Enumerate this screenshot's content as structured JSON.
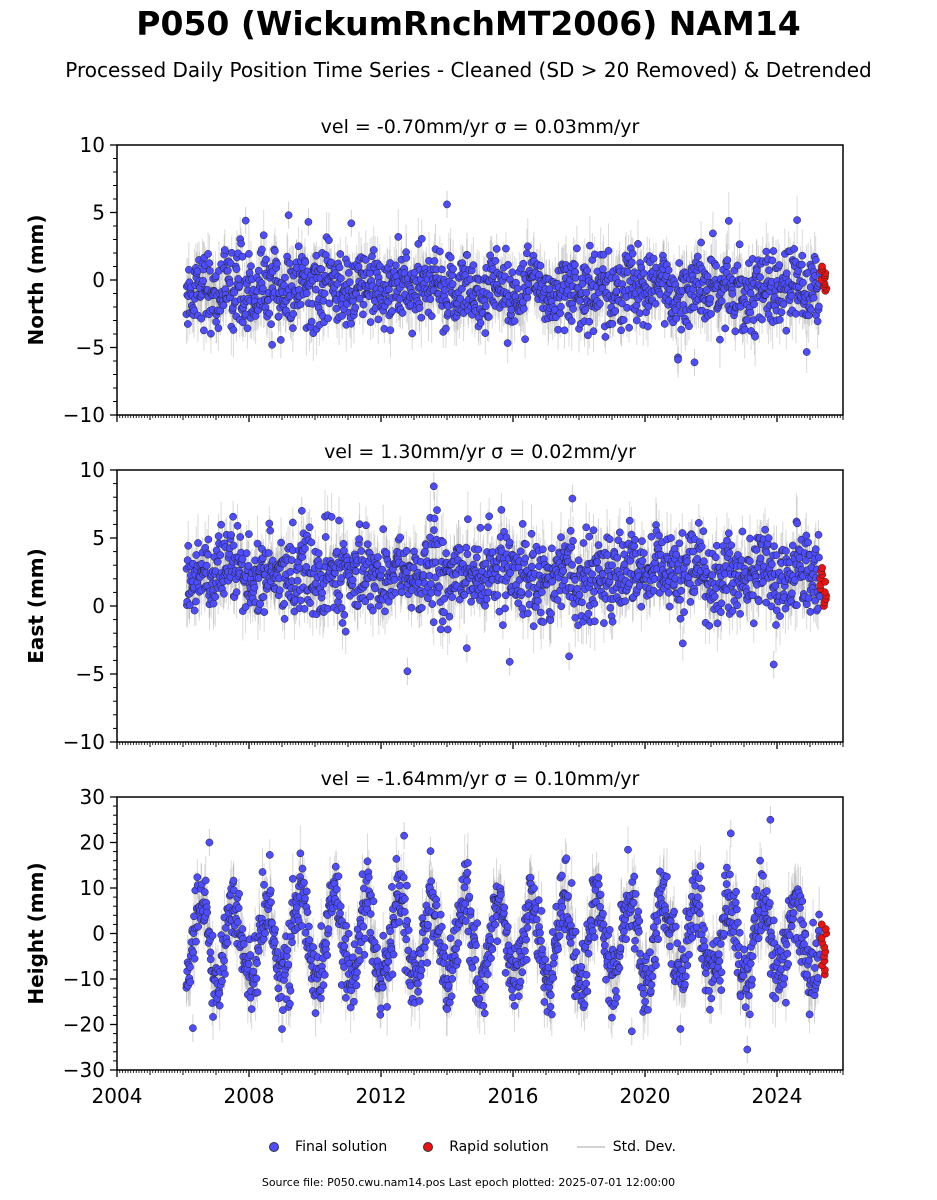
{
  "title": "P050 (WickumRnchMT2006) NAM14",
  "subtitle": "Processed Daily Position Time Series - Cleaned (SD > 20 Removed) & Detrended",
  "legend": {
    "final": "Final solution",
    "rapid": "Rapid solution",
    "std": "Std. Dev."
  },
  "footer": "Source file: P050.cwu.nam14.pos  Last epoch plotted: 2025-07-01 12:00:00",
  "colors": {
    "final": "#4d4dff",
    "rapid": "#ee1111",
    "std": "#9a9a9a"
  },
  "chart_data": [
    {
      "type": "scatter",
      "component": "North",
      "title": "vel = -0.70mm/yr   σ = 0.03mm/yr",
      "ylabel": "North (mm)",
      "xlim": [
        2004,
        2026
      ],
      "ylim": [
        -10,
        10
      ],
      "yticks": [
        -10,
        -5,
        0,
        5,
        10
      ],
      "data_span": [
        2006.1,
        2025.5
      ],
      "series": [
        {
          "name": "Final solution",
          "x_range": [
            2006.1,
            2025.3
          ],
          "mean": -0.7,
          "spread": 1.4,
          "annual_amplitude": 0.4
        },
        {
          "name": "Rapid solution",
          "x_range": [
            2025.3,
            2025.5
          ],
          "y_range": [
            -0.8,
            1.0
          ]
        }
      ],
      "outliers": [
        {
          "x": 2007.9,
          "y": 4.4
        },
        {
          "x": 2009.2,
          "y": 4.8
        },
        {
          "x": 2009.8,
          "y": 4.3
        },
        {
          "x": 2011.1,
          "y": 4.2
        },
        {
          "x": 2014.0,
          "y": 5.6
        },
        {
          "x": 2021.0,
          "y": -5.9
        },
        {
          "x": 2021.5,
          "y": -6.1
        },
        {
          "x": 2008.7,
          "y": -4.8
        }
      ]
    },
    {
      "type": "scatter",
      "component": "East",
      "title": "vel = 1.30mm/yr   σ = 0.02mm/yr",
      "ylabel": "East (mm)",
      "xlim": [
        2004,
        2026
      ],
      "ylim": [
        -10,
        10
      ],
      "yticks": [
        -10,
        -5,
        0,
        5,
        10
      ],
      "data_span": [
        2006.1,
        2025.5
      ],
      "series": [
        {
          "name": "Final solution",
          "x_range": [
            2006.1,
            2025.3
          ],
          "mean": 2.3,
          "spread": 1.5,
          "annual_amplitude": 0.5
        },
        {
          "name": "Rapid solution",
          "x_range": [
            2025.3,
            2025.5
          ],
          "y_range": [
            0.0,
            2.8
          ]
        }
      ],
      "outliers": [
        {
          "x": 2013.6,
          "y": 8.8
        },
        {
          "x": 2017.8,
          "y": 7.9
        },
        {
          "x": 2012.8,
          "y": -4.8
        },
        {
          "x": 2023.9,
          "y": -4.3
        },
        {
          "x": 2015.9,
          "y": -4.1
        },
        {
          "x": 2014.6,
          "y": -3.1
        },
        {
          "x": 2017.7,
          "y": -3.7
        },
        {
          "x": 2009.6,
          "y": 7.0
        }
      ]
    },
    {
      "type": "scatter",
      "component": "Height",
      "title": "vel = -1.64mm/yr   σ = 0.10mm/yr",
      "ylabel": "Height (mm)",
      "xlim": [
        2004,
        2026
      ],
      "ylim": [
        -30,
        30
      ],
      "yticks": [
        -30,
        -20,
        -10,
        0,
        10,
        20,
        30
      ],
      "xticks": [
        2004,
        2008,
        2012,
        2016,
        2020,
        2024
      ],
      "data_span": [
        2006.1,
        2025.5
      ],
      "series": [
        {
          "name": "Final solution",
          "x_range": [
            2006.1,
            2025.3
          ],
          "mean": -1.5,
          "spread": 4.0,
          "annual_amplitude": 9.0
        },
        {
          "name": "Rapid solution",
          "x_range": [
            2025.3,
            2025.5
          ],
          "y_range": [
            -9,
            2
          ]
        }
      ],
      "outliers": [
        {
          "x": 2012.7,
          "y": 21.5
        },
        {
          "x": 2023.8,
          "y": 25.0
        },
        {
          "x": 2023.1,
          "y": -25.5
        },
        {
          "x": 2006.3,
          "y": -20.8
        },
        {
          "x": 2009.0,
          "y": -21.0
        },
        {
          "x": 2022.6,
          "y": 22.0
        },
        {
          "x": 2006.8,
          "y": 20.0
        },
        {
          "x": 2019.6,
          "y": -21.5
        }
      ]
    }
  ]
}
